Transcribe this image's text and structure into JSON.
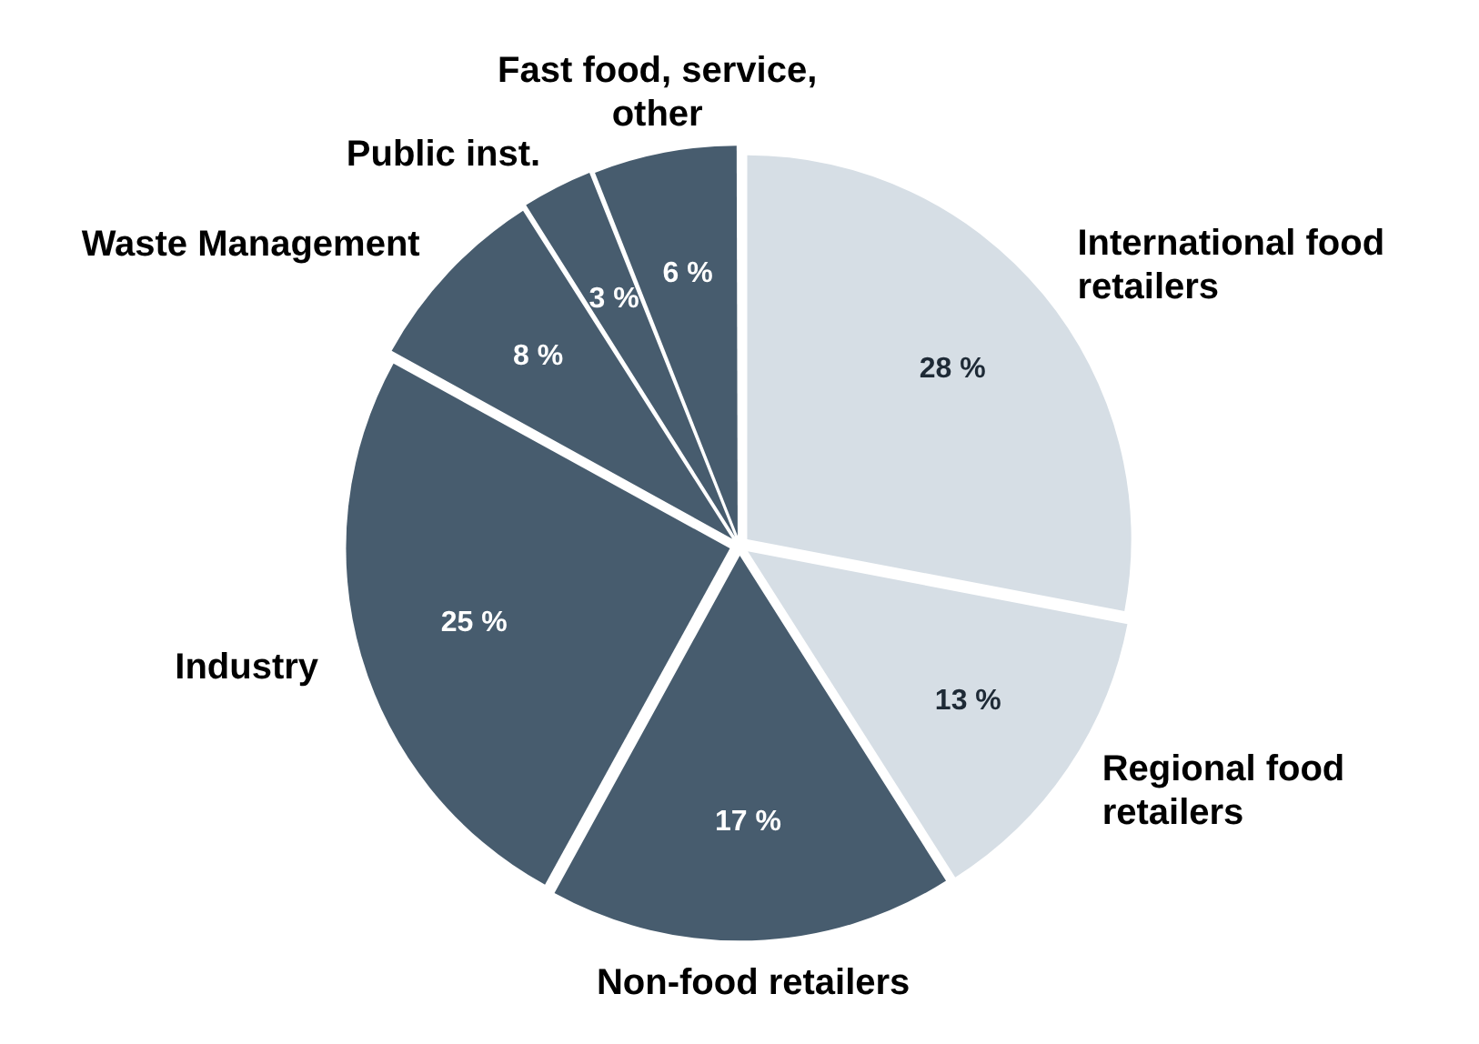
{
  "chart_data": {
    "type": "pie",
    "categories": [
      "International food retailers",
      "Regional food retailers",
      "Non-food retailers",
      "Industry",
      "Waste Management",
      "Public inst.",
      "Fast food, service, other"
    ],
    "values": [
      28,
      13,
      17,
      25,
      8,
      3,
      6
    ],
    "colors": [
      "#d6dee5",
      "#d6dee5",
      "#475c6e",
      "#475c6e",
      "#475c6e",
      "#475c6e",
      "#475c6e"
    ],
    "value_labels": [
      "28 %",
      "13 %",
      "17 %",
      "25 %",
      "8 %",
      "3 %",
      "6 %"
    ]
  }
}
